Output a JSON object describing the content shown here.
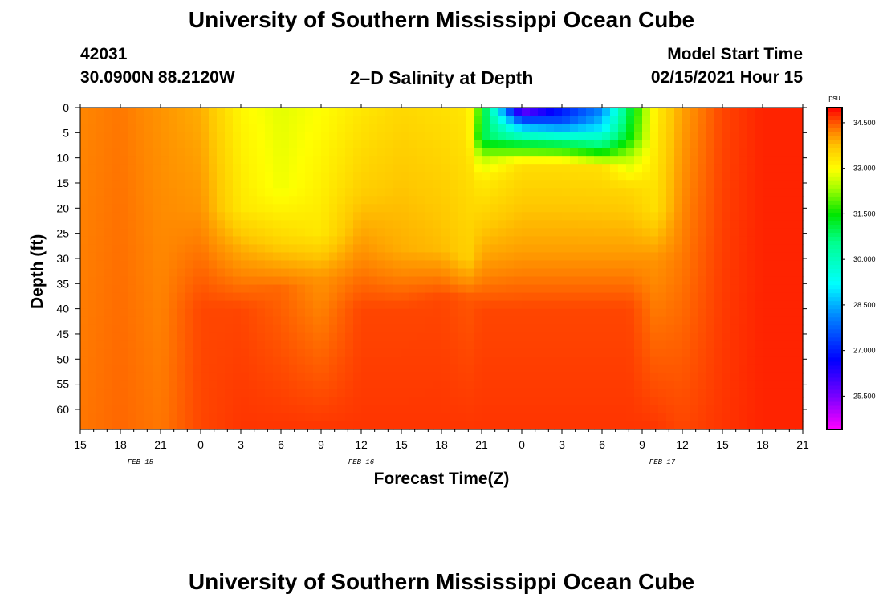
{
  "header": {
    "title_top": "University of Southern Mississippi Ocean Cube",
    "station_id": "42031",
    "location": "30.0900N 88.2120W",
    "plot_title": "2–D Salinity at Depth",
    "model_start_label": "Model Start Time",
    "model_start_value": "02/15/2021 Hour 15",
    "title_bottom": "University of Southern Mississippi Ocean Cube"
  },
  "chart_data": {
    "type": "heatmap",
    "title": "2-D Salinity at Depth",
    "xlabel": "Forecast Time(Z)",
    "ylabel": "Depth (ft)",
    "units": "psu",
    "x_hours": [
      0,
      3,
      6,
      9,
      12,
      15,
      18,
      21,
      24,
      27,
      30,
      33,
      36,
      39,
      42,
      45,
      48,
      51,
      54
    ],
    "x_tick_labels": [
      "15",
      "18",
      "21",
      "0",
      "3",
      "6",
      "9",
      "12",
      "15",
      "18",
      "21",
      "0",
      "3",
      "6",
      "9",
      "12",
      "15",
      "18",
      "21"
    ],
    "day_labels": [
      {
        "label": "FEB 15",
        "hour": 4.5
      },
      {
        "label": "FEB 16",
        "hour": 21
      },
      {
        "label": "FEB 17",
        "hour": 43.5
      }
    ],
    "y_ticks": [
      0,
      5,
      10,
      15,
      20,
      25,
      30,
      35,
      40,
      45,
      50,
      55,
      60
    ],
    "ylim": [
      0,
      64
    ],
    "xlim": [
      0,
      54
    ],
    "colorbar": {
      "min": 24.4,
      "max": 35.0,
      "tick_values": [
        25.5,
        27.0,
        28.5,
        30.0,
        31.5,
        33.0,
        34.5
      ],
      "tick_labels": [
        "25.500",
        "27.000",
        "28.500",
        "30.000",
        "31.500",
        "33.000",
        "34.500"
      ]
    },
    "salinity_columns": [
      {
        "hour": 0,
        "profile": [
          [
            0,
            34.2
          ],
          [
            64,
            34.3
          ]
        ]
      },
      {
        "hour": 3,
        "profile": [
          [
            0,
            34.3
          ],
          [
            64,
            34.4
          ]
        ]
      },
      {
        "hour": 6,
        "profile": [
          [
            0,
            34.1
          ],
          [
            64,
            34.3
          ]
        ]
      },
      {
        "hour": 9,
        "profile": [
          [
            0,
            33.9
          ],
          [
            20,
            34.1
          ],
          [
            40,
            34.6
          ],
          [
            64,
            34.6
          ]
        ]
      },
      {
        "hour": 12,
        "profile": [
          [
            0,
            33.1
          ],
          [
            20,
            33.3
          ],
          [
            28,
            33.9
          ],
          [
            40,
            34.6
          ],
          [
            64,
            34.7
          ]
        ]
      },
      {
        "hour": 15,
        "profile": [
          [
            0,
            32.8
          ],
          [
            16,
            32.9
          ],
          [
            26,
            33.5
          ],
          [
            36,
            34.4
          ],
          [
            64,
            34.7
          ]
        ]
      },
      {
        "hour": 18,
        "profile": [
          [
            0,
            33.0
          ],
          [
            25,
            33.3
          ],
          [
            34,
            34.1
          ],
          [
            64,
            34.7
          ]
        ]
      },
      {
        "hour": 21,
        "profile": [
          [
            0,
            33.3
          ],
          [
            16,
            33.6
          ],
          [
            28,
            34.1
          ],
          [
            40,
            34.6
          ],
          [
            64,
            34.7
          ]
        ]
      },
      {
        "hour": 24,
        "profile": [
          [
            0,
            33.5
          ],
          [
            28,
            33.9
          ],
          [
            40,
            34.6
          ],
          [
            64,
            34.7
          ]
        ]
      },
      {
        "hour": 27,
        "profile": [
          [
            0,
            33.4
          ],
          [
            28,
            33.8
          ],
          [
            38,
            34.6
          ],
          [
            64,
            34.7
          ]
        ]
      },
      {
        "hour": 29,
        "profile": [
          [
            0,
            33.3
          ],
          [
            30,
            33.6
          ],
          [
            38,
            34.5
          ],
          [
            64,
            34.7
          ]
        ]
      },
      {
        "hour": 30,
        "profile": [
          [
            0,
            31.5
          ],
          [
            6,
            31.0
          ],
          [
            10,
            32.5
          ],
          [
            14,
            33.2
          ],
          [
            30,
            34.0
          ],
          [
            40,
            34.6
          ],
          [
            64,
            34.7
          ]
        ]
      },
      {
        "hour": 33,
        "profile": [
          [
            0,
            25.0
          ],
          [
            3,
            28.0
          ],
          [
            7,
            31.0
          ],
          [
            11,
            33.4
          ],
          [
            28,
            34.0
          ],
          [
            40,
            34.6
          ],
          [
            64,
            34.7
          ]
        ]
      },
      {
        "hour": 36,
        "profile": [
          [
            0,
            26.8
          ],
          [
            3,
            27.6
          ],
          [
            7,
            30.8
          ],
          [
            11,
            33.4
          ],
          [
            28,
            34.0
          ],
          [
            40,
            34.6
          ],
          [
            64,
            34.7
          ]
        ]
      },
      {
        "hour": 39,
        "profile": [
          [
            0,
            28.0
          ],
          [
            4,
            29.0
          ],
          [
            8,
            31.0
          ],
          [
            12,
            33.4
          ],
          [
            28,
            34.0
          ],
          [
            40,
            34.6
          ],
          [
            64,
            34.7
          ]
        ]
      },
      {
        "hour": 41,
        "profile": [
          [
            0,
            31.0
          ],
          [
            6,
            31.4
          ],
          [
            10,
            32.5
          ],
          [
            16,
            33.5
          ],
          [
            28,
            34.0
          ],
          [
            40,
            34.6
          ],
          [
            64,
            34.7
          ]
        ]
      },
      {
        "hour": 43,
        "profile": [
          [
            0,
            33.2
          ],
          [
            20,
            33.4
          ],
          [
            30,
            34.1
          ],
          [
            64,
            34.7
          ]
        ]
      },
      {
        "hour": 45,
        "profile": [
          [
            0,
            34.0
          ],
          [
            64,
            34.6
          ]
        ]
      },
      {
        "hour": 48,
        "profile": [
          [
            0,
            34.6
          ],
          [
            64,
            34.7
          ]
        ]
      },
      {
        "hour": 51,
        "profile": [
          [
            0,
            34.8
          ],
          [
            64,
            34.8
          ]
        ]
      },
      {
        "hour": 54,
        "profile": [
          [
            0,
            34.8
          ],
          [
            64,
            34.8
          ]
        ]
      }
    ]
  }
}
